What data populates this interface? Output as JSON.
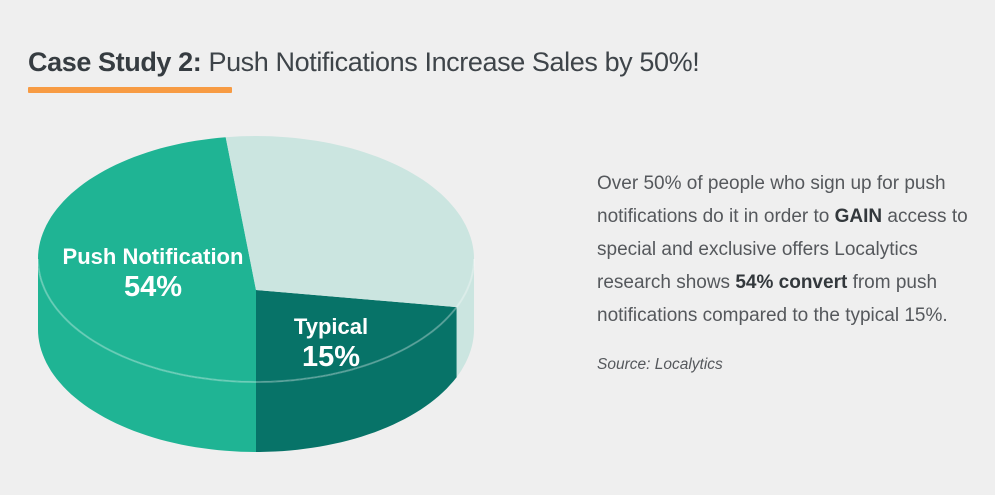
{
  "header": {
    "title_emphasis": "Case Study 2:",
    "title_rest": " Push Notifications Increase Sales by 50%!"
  },
  "aside": {
    "paragraph_segments": [
      {
        "text": "Over 50% of people who sign up for push notifications do it in order to ",
        "bold": false
      },
      {
        "text": "GAIN",
        "bold": true
      },
      {
        "text": " access to special and exclusive offers Localytics research shows ",
        "bold": false
      },
      {
        "text": "54% convert",
        "bold": true
      },
      {
        "text": " from push notifications compared to the typical 15%.",
        "bold": false
      }
    ],
    "source": "Source: Localytics"
  },
  "chart_data": {
    "type": "pie",
    "is_3d": true,
    "title": "",
    "legend": "none",
    "slices": [
      {
        "label": "Push Notification",
        "pct_label": "54%",
        "value_pct": 54,
        "color": "#1fb494",
        "display_start_deg": 180,
        "display_end_deg": 352
      },
      {
        "label": "Typical",
        "pct_label": "15%",
        "value_pct": 15,
        "color": "#077368",
        "display_start_deg": 113,
        "display_end_deg": 180
      },
      {
        "label": "",
        "pct_label": "",
        "value_pct": 31,
        "color": "#cbe5e0",
        "display_start_deg": -8,
        "display_end_deg": 113
      }
    ],
    "label_color": "#ffffff",
    "rim_highlight": "rgba(255,255,255,0.28)"
  },
  "colors": {
    "background": "#efefef",
    "accent_underline": "#f79b43",
    "title_text": "#363c41",
    "body_text": "#55585c"
  }
}
